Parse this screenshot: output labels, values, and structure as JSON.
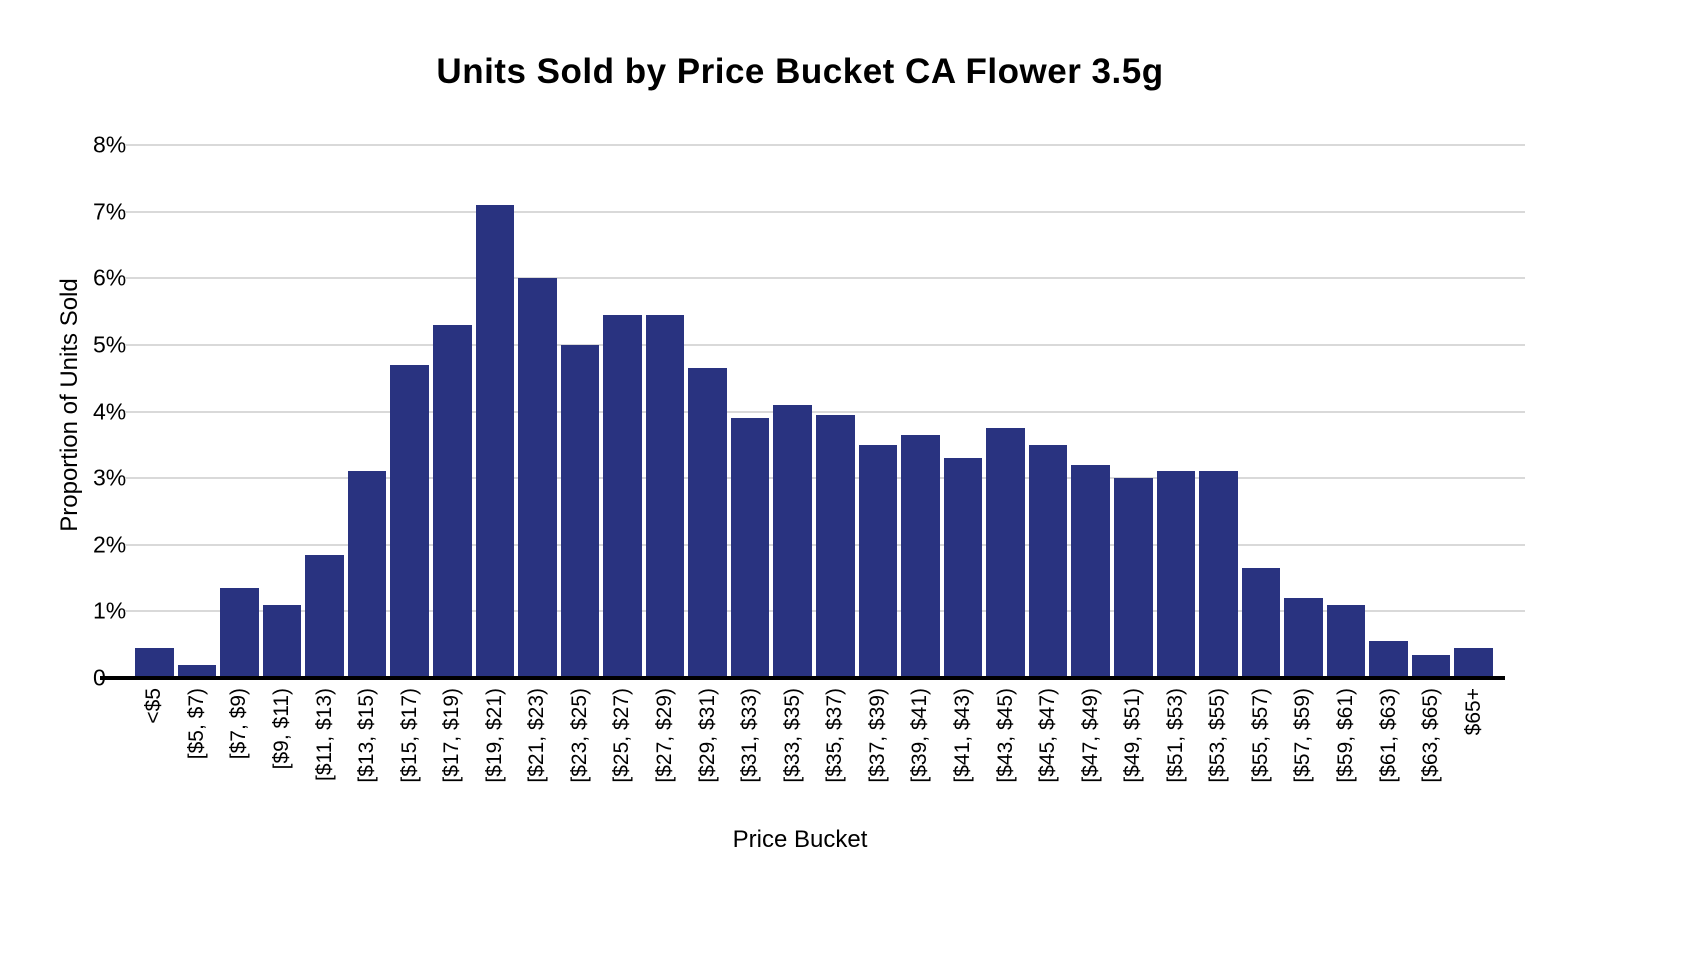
{
  "colors": {
    "bar": "#293380",
    "gridline": "#d9d9d9",
    "axis_line": "#000000",
    "background": "#ffffff",
    "text": "#000000"
  },
  "chart_data": {
    "type": "bar",
    "title": "Units Sold by Price Bucket CA Flower 3.5g",
    "xlabel": "Price Bucket",
    "ylabel": "Proportion of Units Sold",
    "ylim": [
      0,
      8
    ],
    "y_tick_labels": [
      "0",
      "1%",
      "2%",
      "3%",
      "4%",
      "5%",
      "6%",
      "7%",
      "8%"
    ],
    "grid": true,
    "legend": false,
    "unit": "percent",
    "categories": [
      "<$5",
      "[$5, $7)",
      "[$7, $9)",
      "[$9, $11)",
      "[$11, $13)",
      "[$13, $15)",
      "[$15, $17)",
      "[$17, $19)",
      "[$19, $21)",
      "[$21, $23)",
      "[$23, $25)",
      "[$25, $27)",
      "[$27, $29)",
      "[$29, $31)",
      "[$31, $33)",
      "[$33, $35)",
      "[$35, $37)",
      "[$37, $39)",
      "[$39, $41)",
      "[$41, $43)",
      "[$43, $45)",
      "[$45, $47)",
      "[$47, $49)",
      "[$49, $51)",
      "[$51, $53)",
      "[$53, $55)",
      "[$55, $57)",
      "[$57, $59)",
      "[$59, $61)",
      "[$61, $63)",
      "[$63, $65)",
      "$65+"
    ],
    "values": [
      0.45,
      0.2,
      1.35,
      1.1,
      1.85,
      3.1,
      4.7,
      5.3,
      7.1,
      6.0,
      5.0,
      5.45,
      5.45,
      4.65,
      3.9,
      4.1,
      3.95,
      3.5,
      3.65,
      3.3,
      3.75,
      3.5,
      3.2,
      3.0,
      3.1,
      3.1,
      1.65,
      1.2,
      1.1,
      0.55,
      0.35,
      0.45
    ]
  }
}
